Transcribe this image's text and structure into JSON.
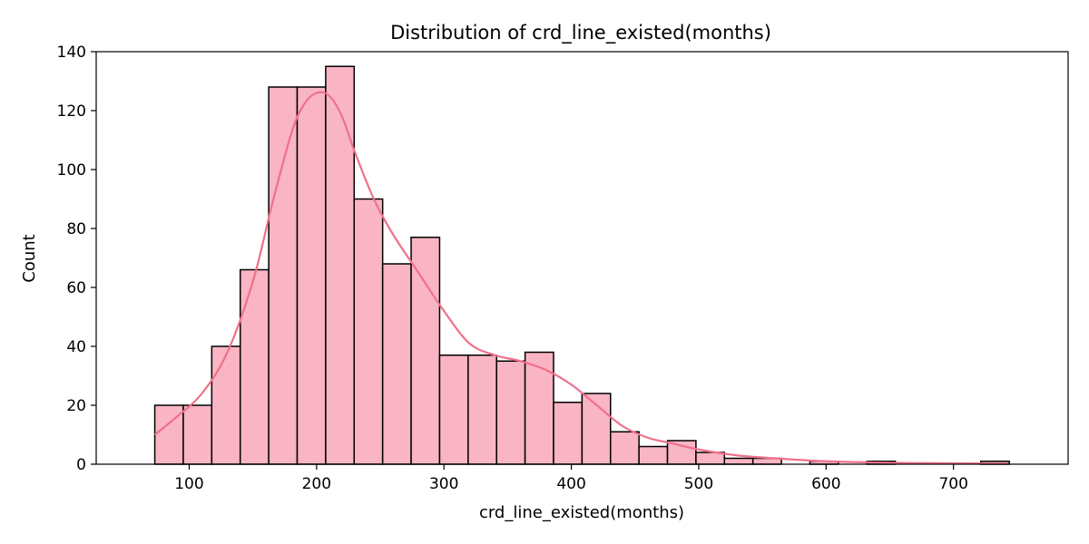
{
  "chart_data": {
    "type": "bar",
    "title": "Distribution of crd_line_existed(months)",
    "xlabel": "crd_line_existed(months)",
    "ylabel": "Count",
    "xlim": [
      27,
      790
    ],
    "ylim": [
      0,
      140
    ],
    "xticks": [
      100,
      200,
      300,
      400,
      500,
      600,
      700
    ],
    "yticks": [
      0,
      20,
      40,
      60,
      80,
      100,
      120,
      140
    ],
    "bin_start": 73,
    "bin_width": 22.36,
    "counts": [
      20,
      20,
      40,
      66,
      128,
      128,
      135,
      90,
      68,
      77,
      37,
      37,
      35,
      38,
      21,
      24,
      11,
      6,
      8,
      4,
      2,
      2,
      0,
      1,
      0,
      1,
      0,
      0,
      0,
      1
    ],
    "kde": {
      "x": [
        73,
        90,
        110,
        130,
        150,
        165,
        180,
        190,
        200,
        210,
        220,
        230,
        245,
        260,
        280,
        300,
        320,
        340,
        360,
        380,
        400,
        420,
        440,
        460,
        480,
        500,
        530,
        560,
        600,
        650,
        700,
        743
      ],
      "y": [
        10,
        16,
        24,
        38,
        62,
        88,
        112,
        122,
        126,
        125,
        118,
        106,
        90,
        78,
        65,
        52,
        41,
        37,
        35,
        32,
        27,
        20,
        13,
        9,
        7,
        5,
        3,
        2,
        1,
        0.5,
        0.3,
        0.2
      ]
    },
    "colors": {
      "bar_fill": "#f9b5c4",
      "bar_edge": "#000000",
      "kde_line": "#f0708a"
    },
    "grid": false,
    "legend": "none"
  }
}
